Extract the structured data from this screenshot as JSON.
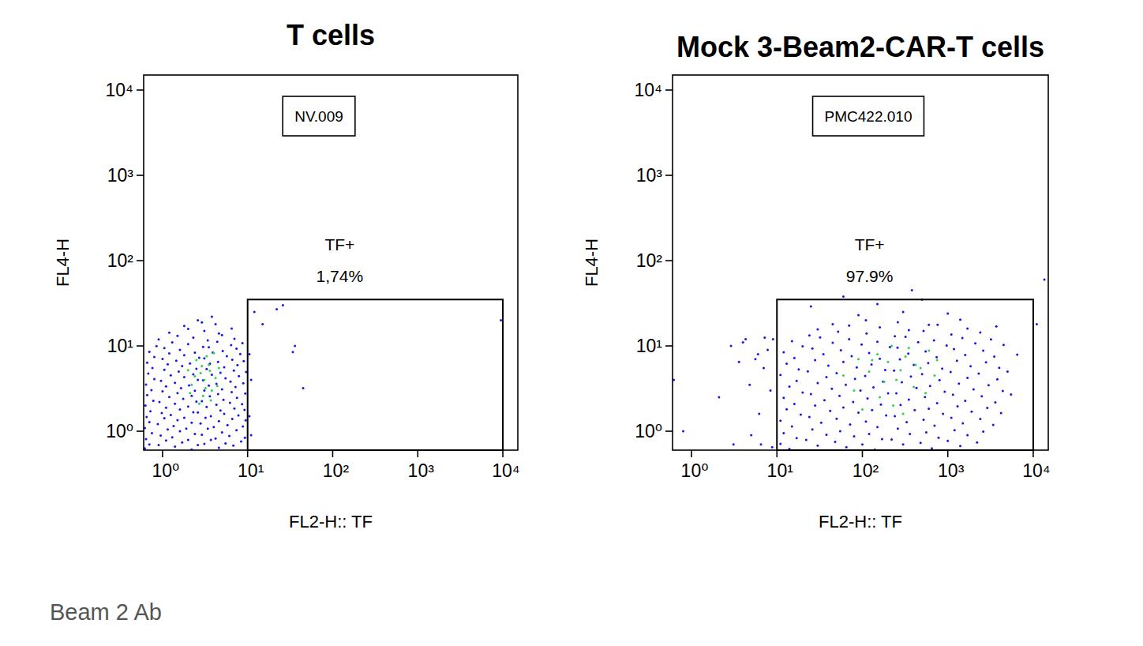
{
  "chart_data": [
    {
      "type": "scatter",
      "title": "T cells",
      "x_label": "FL2-H:: TF",
      "y_label": "FL4-H",
      "sample": "NV.009",
      "log": true,
      "xlim": [
        0.6,
        15000
      ],
      "ylim": [
        0.6,
        15000
      ],
      "xticks": [
        {
          "value": 1,
          "label": "10⁰"
        },
        {
          "value": 10,
          "label": "10¹"
        },
        {
          "value": 100,
          "label": "10²"
        },
        {
          "value": 1000,
          "label": "10³"
        },
        {
          "value": 10000,
          "label": "10⁴"
        }
      ],
      "yticks": [
        {
          "value": 1,
          "label": "10⁰"
        },
        {
          "value": 10,
          "label": "10¹"
        },
        {
          "value": 100,
          "label": "10²"
        },
        {
          "value": 1000,
          "label": "10³"
        },
        {
          "value": 10000,
          "label": "10⁴"
        }
      ],
      "gate": {
        "name": "TF+",
        "label": "1,74%",
        "xlim": [
          10,
          10000
        ],
        "ylim": [
          0.6,
          35
        ]
      },
      "series": [
        {
          "color": "#1616e8",
          "x": [
            0.62,
            0.9,
            1.4,
            2.2,
            3.1,
            4.6,
            6.8,
            0.7,
            1.1,
            1.7,
            2.6,
            3.7,
            5.5,
            8.4,
            0.64,
            0.95,
            1.3,
            2.0,
            2.9,
            4.2,
            6.1,
            9.3,
            0.75,
            1.15,
            1.6,
            2.4,
            3.4,
            5.0,
            7.4,
            0.62,
            0.88,
            1.35,
            1.9,
            2.8,
            4.0,
            5.8,
            8.8,
            0.7,
            1.05,
            1.5,
            2.2,
            3.2,
            4.6,
            6.6,
            9.5,
            0.65,
            0.98,
            1.25,
            1.8,
            2.6,
            3.7,
            5.3,
            7.8,
            0.72,
            1.1,
            1.6,
            2.3,
            3.3,
            4.8,
            7.0,
            9.2,
            0.63,
            0.92,
            1.4,
            2.0,
            2.9,
            4.3,
            6.2,
            8.6,
            0.78,
            1.2,
            1.75,
            2.5,
            3.6,
            5.2,
            7.5,
            0.66,
            1.0,
            1.5,
            2.2,
            3.1,
            4.5,
            6.5,
            9.4,
            0.74,
            1.1,
            1.65,
            2.4,
            3.5,
            5.0,
            7.2,
            0.64,
            0.96,
            1.4,
            2.05,
            3.0,
            4.3,
            6.3,
            8.9,
            0.8,
            1.25,
            1.8,
            2.6,
            3.8,
            5.5,
            7.9,
            0.68,
            1.05,
            1.55,
            2.3,
            3.3,
            4.8,
            6.9,
            9.6,
            0.76,
            1.15,
            1.7,
            2.5,
            3.6,
            5.3,
            7.6,
            0.66,
            1.0,
            1.45,
            2.1,
            3.1,
            4.5,
            6.6,
            9.0,
            0.8,
            1.2,
            1.8,
            2.7,
            3.9,
            5.7,
            8.2,
            0.7,
            1.05,
            1.6,
            2.4,
            3.5,
            5.1,
            7.4,
            0.85,
            1.3,
            2.0,
            3.0,
            4.4,
            6.4,
            8.7,
            0.9,
            1.5,
            2.3,
            3.4,
            5.0,
            7.0,
            1.2,
            2.0,
            3.1,
            4.6,
            6.5,
            1.8,
            2.9,
            4.2,
            2.6,
            3.8,
            10.5,
            11,
            12,
            15,
            22,
            26,
            36,
            34,
            45,
            9500,
            10.5,
            11
          ],
          "values": [
            0.63,
            0.69,
            0.66,
            0.61,
            0.71,
            0.64,
            0.68,
            0.7,
            0.78,
            0.74,
            0.69,
            0.79,
            0.72,
            0.76,
            0.81,
            0.89,
            0.85,
            0.79,
            0.91,
            0.82,
            0.88,
            0.84,
            0.95,
            1.05,
            1.0,
            0.93,
            1.07,
            0.97,
            1.03,
            1.09,
            1.21,
            1.15,
            1.07,
            1.23,
            1.12,
            1.18,
            1.14,
            1.28,
            1.42,
            1.35,
            1.26,
            1.44,
            1.31,
            1.39,
            1.34,
            1.47,
            1.63,
            1.55,
            1.44,
            1.66,
            1.5,
            1.6,
            1.53,
            1.71,
            1.89,
            1.8,
            1.67,
            1.93,
            1.75,
            1.85,
            1.78,
            2.0,
            2.2,
            2.1,
            1.95,
            2.25,
            2.04,
            2.16,
            2.08,
            2.28,
            2.52,
            2.4,
            2.23,
            2.57,
            2.33,
            2.47,
            2.66,
            2.94,
            2.8,
            2.6,
            3.0,
            2.72,
            2.88,
            2.77,
            3.04,
            3.36,
            3.2,
            2.98,
            3.42,
            3.1,
            3.3,
            3.52,
            3.89,
            3.7,
            3.44,
            3.96,
            3.59,
            3.81,
            3.66,
            4.09,
            4.52,
            4.3,
            4.0,
            4.6,
            4.17,
            4.43,
            4.75,
            5.25,
            5.0,
            4.65,
            5.35,
            4.85,
            5.15,
            4.95,
            5.51,
            6.09,
            5.8,
            5.39,
            6.21,
            5.63,
            5.97,
            6.37,
            7.04,
            6.7,
            6.23,
            7.17,
            6.5,
            6.9,
            6.63,
            7.41,
            8.19,
            7.8,
            7.25,
            8.35,
            7.57,
            8.03,
            8.55,
            9.45,
            9.0,
            8.37,
            9.63,
            8.73,
            9.27,
            9.98,
            11.0,
            10.5,
            9.77,
            11.2,
            10.2,
            10.8,
            11.9,
            13.1,
            12.5,
            11.6,
            13.4,
            12.1,
            14.3,
            15.8,
            15,
            14,
            16,
            17.1,
            18.9,
            18,
            20,
            22,
            8,
            4,
            25,
            18,
            27,
            30,
            10,
            8.5,
            3.2,
            20,
            1.5,
            0.9
          ]
        },
        {
          "color": "#2bd24c",
          "x": [
            2.2,
            2.8,
            3.5,
            4.2,
            3.0,
            2.5,
            3.8,
            4.6,
            2.0,
            3.3,
            2.7,
            4.0,
            3.1,
            2.4,
            3.6,
            4.4,
            2.9,
            2.1,
            3.7,
            3.2
          ],
          "values": [
            3.5,
            4.8,
            6.0,
            4.2,
            2.6,
            6.8,
            3.0,
            5.5,
            5.2,
            7.6,
            2.1,
            8.2,
            4.0,
            4.4,
            5.1,
            3.4,
            5.8,
            2.8,
            2.3,
            3.2
          ]
        }
      ]
    },
    {
      "type": "scatter",
      "title": "Mock 3-Beam2-CAR-T cells",
      "x_label": "FL2-H:: TF",
      "y_label": "FL4-H",
      "sample": "PMC422.010",
      "log": true,
      "xlim": [
        0.6,
        15000
      ],
      "ylim": [
        0.6,
        15000
      ],
      "xticks": [
        {
          "value": 1,
          "label": "10⁰"
        },
        {
          "value": 10,
          "label": "10¹"
        },
        {
          "value": 100,
          "label": "10²"
        },
        {
          "value": 1000,
          "label": "10³"
        },
        {
          "value": 10000,
          "label": "10⁴"
        }
      ],
      "yticks": [
        {
          "value": 1,
          "label": "10⁰"
        },
        {
          "value": 10,
          "label": "10¹"
        },
        {
          "value": 100,
          "label": "10²"
        },
        {
          "value": 1000,
          "label": "10³"
        },
        {
          "value": 10000,
          "label": "10⁴"
        }
      ],
      "gate": {
        "name": "TF+",
        "label": "97.9%",
        "xlim": [
          10,
          10000
        ],
        "ylim": [
          0.6,
          35
        ]
      },
      "series": [
        {
          "color": "#1616e8",
          "x": [
            14,
            30,
            65,
            140,
            300,
            650,
            1400,
            11,
            22,
            48,
            100,
            220,
            480,
            1000,
            2200,
            17,
            38,
            80,
            170,
            360,
            780,
            1700,
            12,
            26,
            55,
            120,
            260,
            560,
            1200,
            2600,
            15,
            33,
            72,
            150,
            330,
            700,
            1500,
            3400,
            11,
            24,
            50,
            110,
            240,
            520,
            1100,
            2400,
            19,
            42,
            90,
            190,
            410,
            880,
            1900,
            4200,
            13,
            28,
            60,
            130,
            280,
            600,
            1300,
            2900,
            16,
            36,
            78,
            165,
            350,
            750,
            1600,
            3600,
            12,
            25,
            54,
            115,
            250,
            540,
            1150,
            2500,
            5500,
            20,
            44,
            95,
            200,
            430,
            920,
            2000,
            4400,
            14,
            30,
            64,
            135,
            290,
            620,
            1350,
            3000,
            17,
            38,
            82,
            175,
            370,
            800,
            1700,
            3800,
            11,
            23,
            50,
            108,
            235,
            500,
            1080,
            2300,
            5000,
            18,
            40,
            86,
            185,
            400,
            860,
            1850,
            4000,
            13,
            28,
            60,
            128,
            275,
            590,
            1280,
            2800,
            16,
            35,
            75,
            160,
            345,
            740,
            1600,
            3500,
            6500,
            12,
            26,
            56,
            120,
            258,
            550,
            1180,
            2600,
            20,
            45,
            98,
            210,
            450,
            970,
            2100,
            4500,
            15,
            32,
            70,
            150,
            320,
            690,
            1480,
            3200,
            24,
            52,
            112,
            240,
            520,
            1100,
            2400,
            30,
            70,
            160,
            350,
            760,
            1700,
            3700,
            45,
            110,
            260,
            600,
            1400,
            90,
            300,
            1000,
            25,
            150,
            380,
            500,
            60,
            13500,
            11000,
            0.62,
            0.8,
            2.1,
            2.9,
            3.6,
            4.3,
            4.8,
            5.6,
            6.2,
            7,
            7.8,
            8.4,
            9,
            6.5,
            5,
            8.8,
            3.1,
            4,
            7.2,
            6
          ],
          "values": [
            0.62,
            0.68,
            0.65,
            0.61,
            0.7,
            0.63,
            0.67,
            0.71,
            0.79,
            0.75,
            0.7,
            0.8,
            0.73,
            0.77,
            0.74,
            0.83,
            0.91,
            0.87,
            0.81,
            0.93,
            0.84,
            0.9,
            0.95,
            1.05,
            1.0,
            0.93,
            1.07,
            0.97,
            1.03,
            0.99,
            1.14,
            1.26,
            1.2,
            1.12,
            1.28,
            1.16,
            1.24,
            1.19,
            1.33,
            1.47,
            1.4,
            1.3,
            1.5,
            1.36,
            1.44,
            1.39,
            1.57,
            1.73,
            1.65,
            1.53,
            1.77,
            1.6,
            1.7,
            1.63,
            1.81,
            2.0,
            1.9,
            1.77,
            2.03,
            1.84,
            1.96,
            1.88,
            2.09,
            2.31,
            2.2,
            2.05,
            2.35,
            2.13,
            2.27,
            2.18,
            2.47,
            2.73,
            2.6,
            2.42,
            2.78,
            2.52,
            2.68,
            2.57,
            2.7,
            2.85,
            3.15,
            3.0,
            2.79,
            3.21,
            2.91,
            3.09,
            2.97,
            3.33,
            3.68,
            3.5,
            3.26,
            3.75,
            3.4,
            3.61,
            3.47,
            3.9,
            4.31,
            4.1,
            3.81,
            4.39,
            3.98,
            4.22,
            4.06,
            4.56,
            5.04,
            4.8,
            4.46,
            5.14,
            4.66,
            4.94,
            4.75,
            5.0,
            5.32,
            5.88,
            5.6,
            5.21,
            5.99,
            5.43,
            5.77,
            5.54,
            6.18,
            6.83,
            6.5,
            6.05,
            6.96,
            6.31,
            6.7,
            6.44,
            7.22,
            7.98,
            7.6,
            7.07,
            8.13,
            7.37,
            7.83,
            7.52,
            7.9,
            8.46,
            9.35,
            8.9,
            8.28,
            9.52,
            8.63,
            9.17,
            8.81,
            9.88,
            10.9,
            10.4,
            9.67,
            11.1,
            10.1,
            10.7,
            10.3,
            11.4,
            12.6,
            12,
            11.2,
            12.8,
            11.6,
            12.4,
            11.9,
            13.3,
            14.7,
            14,
            13,
            15,
            13.6,
            14.4,
            15.7,
            17.3,
            16.5,
            15.3,
            17.7,
            16,
            17,
            18,
            20,
            19,
            17.7,
            20.3,
            23,
            25,
            24,
            29,
            31,
            45,
            35,
            38,
            60,
            18,
            4,
            1.0,
            2.5,
            10,
            6.5,
            12,
            3.5,
            7,
            1.6,
            5.5,
            9,
            3,
            12,
            0.7,
            0.9,
            0.65,
            0.7,
            11,
            12.5,
            8
          ]
        },
        {
          "color": "#2bd24c",
          "x": [
            80,
            120,
            160,
            200,
            250,
            320,
            400,
            480,
            150,
            100,
            230,
            550,
            350,
            700,
            60,
            280,
            180,
            420,
            130,
            600,
            90,
            300,
            220,
            750
          ],
          "values": [
            3,
            5,
            2.5,
            6.5,
            4,
            7.5,
            3.3,
            5.5,
            8,
            1.8,
            2,
            2.8,
            9.5,
            4.5,
            4.5,
            5.2,
            3.8,
            6,
            6.8,
            8.8,
            7,
            1.6,
            10,
            6.8
          ]
        }
      ]
    }
  ],
  "caption": "Beam 2 Ab"
}
